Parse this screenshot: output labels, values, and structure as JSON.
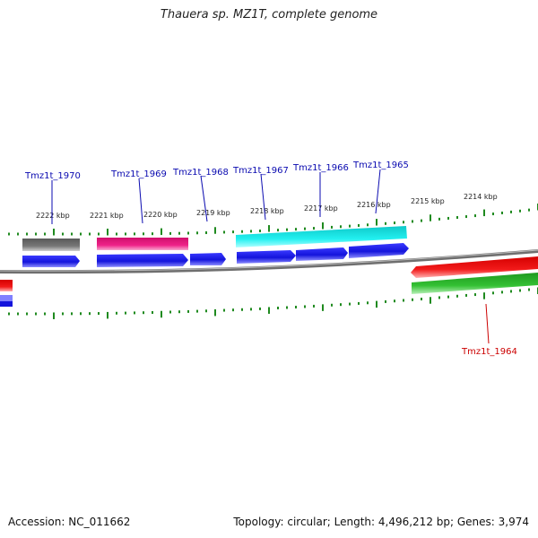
{
  "title": "Thauera sp. MZ1T, complete genome",
  "footer": {
    "accession": "Accession: NC_011662",
    "topology": "Topology: circular; Length: 4,496,212 bp; Genes: 3,974"
  },
  "colors": {
    "backbone": "#8a8a8a",
    "tick": "#1f8a1f",
    "label_forward": "#0a0ab0",
    "label_reverse": "#cc0000",
    "cds_blue": "#1414dc",
    "gray_feature": "#6e6e6e",
    "pink_feature": "#e6197e",
    "cyan_feature": "#16e6e6",
    "red_feature": "#ee1111",
    "green_feature": "#2db82d"
  },
  "scale_labels": [
    "2222 kbp",
    "2221 kbp",
    "2220 kbp",
    "2219 kbp",
    "2218 kbp",
    "2217 kbp",
    "2216 kbp",
    "2215 kbp",
    "2214 kbp"
  ],
  "gene_labels_forward": [
    "Tmz1t_1970",
    "Tmz1t_1969",
    "Tmz1t_1968",
    "Tmz1t_1967",
    "Tmz1t_1966",
    "Tmz1t_1965"
  ],
  "gene_labels_reverse": [
    "Tmz1t_1964"
  ]
}
